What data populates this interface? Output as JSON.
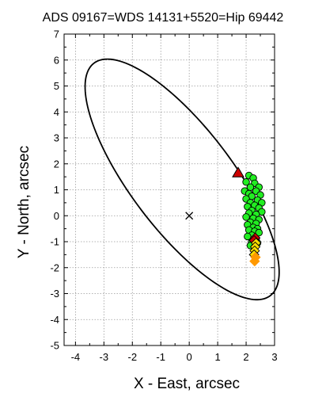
{
  "chart_data": {
    "type": "scatter",
    "title": "ADS 09167=WDS 14131+5520=Hip 69442",
    "xlabel": "X - East, arcsec",
    "ylabel": "Y - North, arcsec",
    "xlim": [
      -4.4,
      3.0
    ],
    "ylim": [
      -5,
      7
    ],
    "x_ticks": [
      -4,
      -3,
      -2,
      -1,
      0,
      1,
      2,
      3
    ],
    "y_ticks": [
      -5,
      -4,
      -3,
      -2,
      -1,
      0,
      1,
      2,
      3,
      4,
      5,
      6,
      7
    ],
    "x_tick_labels": [
      "-4",
      "-3",
      "-2",
      "-1",
      "0",
      "1",
      "2",
      "3"
    ],
    "y_tick_labels": [
      "-5",
      "-4",
      "-3",
      "-2",
      "-1",
      "0",
      "1",
      "2",
      "3",
      "4",
      "5",
      "6",
      "7"
    ],
    "grid": true,
    "orbit_ellipse": {
      "center": [
        -0.25,
        1.4
      ],
      "semi_major": 5.45,
      "semi_minor": 1.85,
      "orientation_deg": 124
    },
    "primary_star": [
      0,
      0
    ],
    "observations": {
      "color": "#22ee22",
      "points": [
        [
          2.1,
          1.55
        ],
        [
          2.25,
          1.45
        ],
        [
          2.0,
          1.3
        ],
        [
          2.3,
          1.25
        ],
        [
          2.15,
          1.1
        ],
        [
          2.45,
          1.1
        ],
        [
          1.95,
          0.95
        ],
        [
          2.35,
          0.95
        ],
        [
          2.1,
          0.85
        ],
        [
          2.5,
          0.8
        ],
        [
          2.2,
          0.75
        ],
        [
          2.0,
          0.65
        ],
        [
          2.4,
          0.6
        ],
        [
          2.55,
          0.5
        ],
        [
          2.15,
          0.5
        ],
        [
          2.3,
          0.4
        ],
        [
          2.05,
          0.35
        ],
        [
          2.45,
          0.3
        ],
        [
          2.2,
          0.2
        ],
        [
          2.55,
          0.15
        ],
        [
          2.1,
          0.1
        ],
        [
          2.35,
          0.05
        ],
        [
          2.0,
          -0.05
        ],
        [
          2.25,
          -0.1
        ],
        [
          2.45,
          -0.15
        ],
        [
          2.15,
          -0.25
        ],
        [
          2.35,
          -0.3
        ],
        [
          2.05,
          -0.35
        ],
        [
          2.25,
          -0.45
        ],
        [
          2.4,
          -0.5
        ],
        [
          2.1,
          -0.55
        ],
        [
          2.3,
          -0.6
        ],
        [
          2.45,
          -0.65
        ],
        [
          2.2,
          -0.75
        ],
        [
          2.05,
          -0.8
        ],
        [
          2.35,
          -0.9
        ],
        [
          2.2,
          -1.0
        ],
        [
          2.4,
          -1.05
        ],
        [
          2.15,
          -1.15
        ],
        [
          2.3,
          -1.2
        ]
      ]
    },
    "first_position": {
      "point": [
        1.72,
        1.65
      ],
      "color": "#cc0000"
    },
    "recent_positions": {
      "color": "#cc0000",
      "points": [
        [
          2.32,
          -0.85
        ],
        [
          2.28,
          -0.95
        ]
      ]
    },
    "ephemeris": {
      "color": "#ffdd00",
      "points": [
        [
          2.35,
          -1.05
        ],
        [
          2.32,
          -1.2
        ],
        [
          2.3,
          -1.35
        ],
        [
          2.28,
          -1.5
        ]
      ]
    },
    "ephemeris_far": {
      "color": "#ff9900",
      "points": [
        [
          2.33,
          -1.6
        ],
        [
          2.3,
          -1.75
        ]
      ]
    }
  }
}
